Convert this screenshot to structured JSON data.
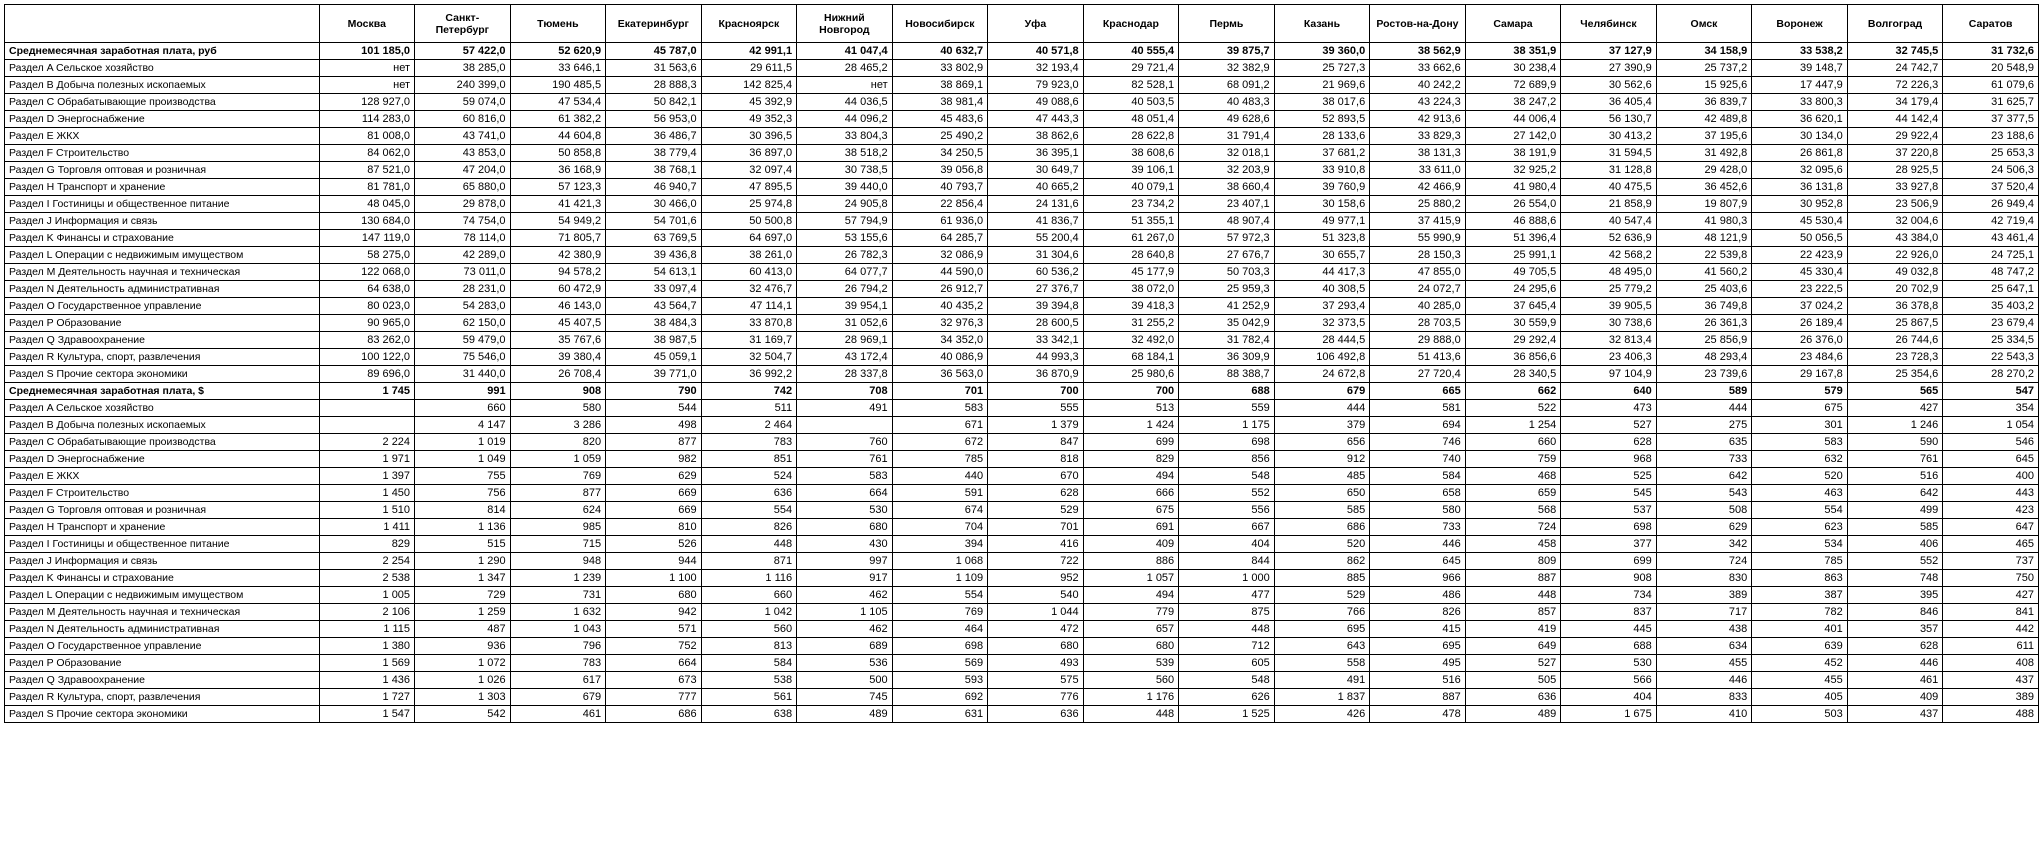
{
  "cities": [
    "Москва",
    "Санкт-Петербург",
    "Тюмень",
    "Екатеринбург",
    "Красноярск",
    "Нижний Новгород",
    "Новосибирск",
    "Уфа",
    "Краснодар",
    "Пермь",
    "Казань",
    "Ростов-на-Дону",
    "Самара",
    "Челябинск",
    "Омск",
    "Воронеж",
    "Волгоград",
    "Саратов"
  ],
  "rows": [
    {
      "label": "Среднемесячная заработная плата, руб",
      "bold": true,
      "v": [
        "101 185,0",
        "57 422,0",
        "52 620,9",
        "45 787,0",
        "42 991,1",
        "41 047,4",
        "40 632,7",
        "40 571,8",
        "40 555,4",
        "39 875,7",
        "39 360,0",
        "38 562,9",
        "38 351,9",
        "37 127,9",
        "34 158,9",
        "33 538,2",
        "32 745,5",
        "31 732,6"
      ]
    },
    {
      "label": "Раздел A Сельское хозяйство",
      "v": [
        "нет",
        "38 285,0",
        "33 646,1",
        "31 563,6",
        "29 611,5",
        "28 465,2",
        "33 802,9",
        "32 193,4",
        "29 721,4",
        "32 382,9",
        "25 727,3",
        "33 662,6",
        "30 238,4",
        "27 390,9",
        "25 737,2",
        "39 148,7",
        "24 742,7",
        "20 548,9"
      ]
    },
    {
      "label": "Раздел B Добыча полезных ископаемых",
      "v": [
        "нет",
        "240 399,0",
        "190 485,5",
        "28 888,3",
        "142 825,4",
        "нет",
        "38 869,1",
        "79 923,0",
        "82 528,1",
        "68 091,2",
        "21 969,6",
        "40 242,2",
        "72 689,9",
        "30 562,6",
        "15 925,6",
        "17 447,9",
        "72 226,3",
        "61 079,6"
      ]
    },
    {
      "label": "Раздел C Обрабатывающие производства",
      "v": [
        "128 927,0",
        "59 074,0",
        "47 534,4",
        "50 842,1",
        "45 392,9",
        "44 036,5",
        "38 981,4",
        "49 088,6",
        "40 503,5",
        "40 483,3",
        "38 017,6",
        "43 224,3",
        "38 247,2",
        "36 405,4",
        "36 839,7",
        "33 800,3",
        "34 179,4",
        "31 625,7"
      ]
    },
    {
      "label": "Раздел D Энергоснабжение",
      "v": [
        "114 283,0",
        "60 816,0",
        "61 382,2",
        "56 953,0",
        "49 352,3",
        "44 096,2",
        "45 483,6",
        "47 443,3",
        "48 051,4",
        "49 628,6",
        "52 893,5",
        "42 913,6",
        "44 006,4",
        "56 130,7",
        "42 489,8",
        "36 620,1",
        "44 142,4",
        "37 377,5"
      ]
    },
    {
      "label": "Раздел E ЖКХ",
      "v": [
        "81 008,0",
        "43 741,0",
        "44 604,8",
        "36 486,7",
        "30 396,5",
        "33 804,3",
        "25 490,2",
        "38 862,6",
        "28 622,8",
        "31 791,4",
        "28 133,6",
        "33 829,3",
        "27 142,0",
        "30 413,2",
        "37 195,6",
        "30 134,0",
        "29 922,4",
        "23 188,6"
      ]
    },
    {
      "label": "Раздел F Строительство",
      "v": [
        "84 062,0",
        "43 853,0",
        "50 858,8",
        "38 779,4",
        "36 897,0",
        "38 518,2",
        "34 250,5",
        "36 395,1",
        "38 608,6",
        "32 018,1",
        "37 681,2",
        "38 131,3",
        "38 191,9",
        "31 594,5",
        "31 492,8",
        "26 861,8",
        "37 220,8",
        "25 653,3"
      ]
    },
    {
      "label": "Раздел G Торговля оптовая и розничная",
      "v": [
        "87 521,0",
        "47 204,0",
        "36 168,9",
        "38 768,1",
        "32 097,4",
        "30 738,5",
        "39 056,8",
        "30 649,7",
        "39 106,1",
        "32 203,9",
        "33 910,8",
        "33 611,0",
        "32 925,2",
        "31 128,8",
        "29 428,0",
        "32 095,6",
        "28 925,5",
        "24 506,3"
      ]
    },
    {
      "label": "Раздел H Транспорт и хранение",
      "v": [
        "81 781,0",
        "65 880,0",
        "57 123,3",
        "46 940,7",
        "47 895,5",
        "39 440,0",
        "40 793,7",
        "40 665,2",
        "40 079,1",
        "38 660,4",
        "39 760,9",
        "42 466,9",
        "41 980,4",
        "40 475,5",
        "36 452,6",
        "36 131,8",
        "33 927,8",
        "37 520,4"
      ]
    },
    {
      "label": "Раздел I Гостиницы и общественное питание",
      "v": [
        "48 045,0",
        "29 878,0",
        "41 421,3",
        "30 466,0",
        "25 974,8",
        "24 905,8",
        "22 856,4",
        "24 131,6",
        "23 734,2",
        "23 407,1",
        "30 158,6",
        "25 880,2",
        "26 554,0",
        "21 858,9",
        "19 807,9",
        "30 952,8",
        "23 506,9",
        "26 949,4"
      ]
    },
    {
      "label": "Раздел J Информация и связь",
      "v": [
        "130 684,0",
        "74 754,0",
        "54 949,2",
        "54 701,6",
        "50 500,8",
        "57 794,9",
        "61 936,0",
        "41 836,7",
        "51 355,1",
        "48 907,4",
        "49 977,1",
        "37 415,9",
        "46 888,6",
        "40 547,4",
        "41 980,3",
        "45 530,4",
        "32 004,6",
        "42 719,4"
      ]
    },
    {
      "label": "Раздел K Финансы и страхование",
      "v": [
        "147 119,0",
        "78 114,0",
        "71 805,7",
        "63 769,5",
        "64 697,0",
        "53 155,6",
        "64 285,7",
        "55 200,4",
        "61 267,0",
        "57 972,3",
        "51 323,8",
        "55 990,9",
        "51 396,4",
        "52 636,9",
        "48 121,9",
        "50 056,5",
        "43 384,0",
        "43 461,4"
      ]
    },
    {
      "label": "Раздел L Операции с недвижимым имуществом",
      "v": [
        "58 275,0",
        "42 289,0",
        "42 380,9",
        "39 436,8",
        "38 261,0",
        "26 782,3",
        "32 086,9",
        "31 304,6",
        "28 640,8",
        "27 676,7",
        "30 655,7",
        "28 150,3",
        "25 991,1",
        "42 568,2",
        "22 539,8",
        "22 423,9",
        "22 926,0",
        "24 725,1"
      ]
    },
    {
      "label": "Раздел M Деятельность научная и техническая",
      "v": [
        "122 068,0",
        "73 011,0",
        "94 578,2",
        "54 613,1",
        "60 413,0",
        "64 077,7",
        "44 590,0",
        "60 536,2",
        "45 177,9",
        "50 703,3",
        "44 417,3",
        "47 855,0",
        "49 705,5",
        "48 495,0",
        "41 560,2",
        "45 330,4",
        "49 032,8",
        "48 747,2"
      ]
    },
    {
      "label": "Раздел N Деятельность административная",
      "v": [
        "64 638,0",
        "28 231,0",
        "60 472,9",
        "33 097,4",
        "32 476,7",
        "26 794,2",
        "26 912,7",
        "27 376,7",
        "38 072,0",
        "25 959,3",
        "40 308,5",
        "24 072,7",
        "24 295,6",
        "25 779,2",
        "25 403,6",
        "23 222,5",
        "20 702,9",
        "25 647,1"
      ]
    },
    {
      "label": "Раздел O Государственное управление",
      "v": [
        "80 023,0",
        "54 283,0",
        "46 143,0",
        "43 564,7",
        "47 114,1",
        "39 954,1",
        "40 435,2",
        "39 394,8",
        "39 418,3",
        "41 252,9",
        "37 293,4",
        "40 285,0",
        "37 645,4",
        "39 905,5",
        "36 749,8",
        "37 024,2",
        "36 378,8",
        "35 403,2"
      ]
    },
    {
      "label": "Раздел P Образование",
      "v": [
        "90 965,0",
        "62 150,0",
        "45 407,5",
        "38 484,3",
        "33 870,8",
        "31 052,6",
        "32 976,3",
        "28 600,5",
        "31 255,2",
        "35 042,9",
        "32 373,5",
        "28 703,5",
        "30 559,9",
        "30 738,6",
        "26 361,3",
        "26 189,4",
        "25 867,5",
        "23 679,4"
      ]
    },
    {
      "label": "Раздел Q Здравоохранение",
      "v": [
        "83 262,0",
        "59 479,0",
        "35 767,6",
        "38 987,5",
        "31 169,7",
        "28 969,1",
        "34 352,0",
        "33 342,1",
        "32 492,0",
        "31 782,4",
        "28 444,5",
        "29 888,0",
        "29 292,4",
        "32 813,4",
        "25 856,9",
        "26 376,0",
        "26 744,6",
        "25 334,5"
      ]
    },
    {
      "label": "Раздел R Культура, спорт, развлечения",
      "v": [
        "100 122,0",
        "75 546,0",
        "39 380,4",
        "45 059,1",
        "32 504,7",
        "43 172,4",
        "40 086,9",
        "44 993,3",
        "68 184,1",
        "36 309,9",
        "106 492,8",
        "51 413,6",
        "36 856,6",
        "23 406,3",
        "48 293,4",
        "23 484,6",
        "23 728,3",
        "22 543,3"
      ]
    },
    {
      "label": "Раздел S Прочие сектора экономики",
      "v": [
        "89 696,0",
        "31 440,0",
        "26 708,4",
        "39 771,0",
        "36 992,2",
        "28 337,8",
        "36 563,0",
        "36 870,9",
        "25 980,6",
        "88 388,7",
        "24 672,8",
        "27 720,4",
        "28 340,5",
        "97 104,9",
        "23 739,6",
        "29 167,8",
        "25 354,6",
        "28 270,2"
      ]
    },
    {
      "label": "Среднемесячная заработная плата, $",
      "bold": true,
      "v": [
        "1 745",
        "991",
        "908",
        "790",
        "742",
        "708",
        "701",
        "700",
        "700",
        "688",
        "679",
        "665",
        "662",
        "640",
        "589",
        "579",
        "565",
        "547"
      ]
    },
    {
      "label": "Раздел A Сельское хозяйство",
      "v": [
        "",
        "660",
        "580",
        "544",
        "511",
        "491",
        "583",
        "555",
        "513",
        "559",
        "444",
        "581",
        "522",
        "473",
        "444",
        "675",
        "427",
        "354"
      ]
    },
    {
      "label": "Раздел B Добыча полезных ископаемых",
      "v": [
        "",
        "4 147",
        "3 286",
        "498",
        "2 464",
        "",
        "671",
        "1 379",
        "1 424",
        "1 175",
        "379",
        "694",
        "1 254",
        "527",
        "275",
        "301",
        "1 246",
        "1 054"
      ]
    },
    {
      "label": "Раздел C Обрабатывающие производства",
      "v": [
        "2 224",
        "1 019",
        "820",
        "877",
        "783",
        "760",
        "672",
        "847",
        "699",
        "698",
        "656",
        "746",
        "660",
        "628",
        "635",
        "583",
        "590",
        "546"
      ]
    },
    {
      "label": "Раздел D Энергоснабжение",
      "v": [
        "1 971",
        "1 049",
        "1 059",
        "982",
        "851",
        "761",
        "785",
        "818",
        "829",
        "856",
        "912",
        "740",
        "759",
        "968",
        "733",
        "632",
        "761",
        "645"
      ]
    },
    {
      "label": "Раздел E ЖКХ",
      "v": [
        "1 397",
        "755",
        "769",
        "629",
        "524",
        "583",
        "440",
        "670",
        "494",
        "548",
        "485",
        "584",
        "468",
        "525",
        "642",
        "520",
        "516",
        "400"
      ]
    },
    {
      "label": "Раздел F Строительство",
      "v": [
        "1 450",
        "756",
        "877",
        "669",
        "636",
        "664",
        "591",
        "628",
        "666",
        "552",
        "650",
        "658",
        "659",
        "545",
        "543",
        "463",
        "642",
        "443"
      ]
    },
    {
      "label": "Раздел G Торговля оптовая и розничная",
      "v": [
        "1 510",
        "814",
        "624",
        "669",
        "554",
        "530",
        "674",
        "529",
        "675",
        "556",
        "585",
        "580",
        "568",
        "537",
        "508",
        "554",
        "499",
        "423"
      ]
    },
    {
      "label": "Раздел H Транспорт и хранение",
      "v": [
        "1 411",
        "1 136",
        "985",
        "810",
        "826",
        "680",
        "704",
        "701",
        "691",
        "667",
        "686",
        "733",
        "724",
        "698",
        "629",
        "623",
        "585",
        "647"
      ]
    },
    {
      "label": "Раздел I Гостиницы и общественное питание",
      "v": [
        "829",
        "515",
        "715",
        "526",
        "448",
        "430",
        "394",
        "416",
        "409",
        "404",
        "520",
        "446",
        "458",
        "377",
        "342",
        "534",
        "406",
        "465"
      ]
    },
    {
      "label": "Раздел J Информация и связь",
      "v": [
        "2 254",
        "1 290",
        "948",
        "944",
        "871",
        "997",
        "1 068",
        "722",
        "886",
        "844",
        "862",
        "645",
        "809",
        "699",
        "724",
        "785",
        "552",
        "737"
      ]
    },
    {
      "label": "Раздел K Финансы и страхование",
      "v": [
        "2 538",
        "1 347",
        "1 239",
        "1 100",
        "1 116",
        "917",
        "1 109",
        "952",
        "1 057",
        "1 000",
        "885",
        "966",
        "887",
        "908",
        "830",
        "863",
        "748",
        "750"
      ]
    },
    {
      "label": "Раздел L Операции с недвижимым имуществом",
      "v": [
        "1 005",
        "729",
        "731",
        "680",
        "660",
        "462",
        "554",
        "540",
        "494",
        "477",
        "529",
        "486",
        "448",
        "734",
        "389",
        "387",
        "395",
        "427"
      ]
    },
    {
      "label": "Раздел M Деятельность научная и техническая",
      "v": [
        "2 106",
        "1 259",
        "1 632",
        "942",
        "1 042",
        "1 105",
        "769",
        "1 044",
        "779",
        "875",
        "766",
        "826",
        "857",
        "837",
        "717",
        "782",
        "846",
        "841"
      ]
    },
    {
      "label": "Раздел N Деятельность административная",
      "v": [
        "1 115",
        "487",
        "1 043",
        "571",
        "560",
        "462",
        "464",
        "472",
        "657",
        "448",
        "695",
        "415",
        "419",
        "445",
        "438",
        "401",
        "357",
        "442"
      ]
    },
    {
      "label": "Раздел O Государственное управление",
      "v": [
        "1 380",
        "936",
        "796",
        "752",
        "813",
        "689",
        "698",
        "680",
        "680",
        "712",
        "643",
        "695",
        "649",
        "688",
        "634",
        "639",
        "628",
        "611"
      ]
    },
    {
      "label": "Раздел P Образование",
      "v": [
        "1 569",
        "1 072",
        "783",
        "664",
        "584",
        "536",
        "569",
        "493",
        "539",
        "605",
        "558",
        "495",
        "527",
        "530",
        "455",
        "452",
        "446",
        "408"
      ]
    },
    {
      "label": "Раздел Q Здравоохранение",
      "v": [
        "1 436",
        "1 026",
        "617",
        "673",
        "538",
        "500",
        "593",
        "575",
        "560",
        "548",
        "491",
        "516",
        "505",
        "566",
        "446",
        "455",
        "461",
        "437"
      ]
    },
    {
      "label": "Раздел R Культура, спорт, развлечения",
      "v": [
        "1 727",
        "1 303",
        "679",
        "777",
        "561",
        "745",
        "692",
        "776",
        "1 176",
        "626",
        "1 837",
        "887",
        "636",
        "404",
        "833",
        "405",
        "409",
        "389"
      ]
    },
    {
      "label": "Раздел S Прочие сектора экономики",
      "v": [
        "1 547",
        "542",
        "461",
        "686",
        "638",
        "489",
        "631",
        "636",
        "448",
        "1 525",
        "426",
        "478",
        "489",
        "1 675",
        "410",
        "503",
        "437",
        "488"
      ]
    }
  ]
}
